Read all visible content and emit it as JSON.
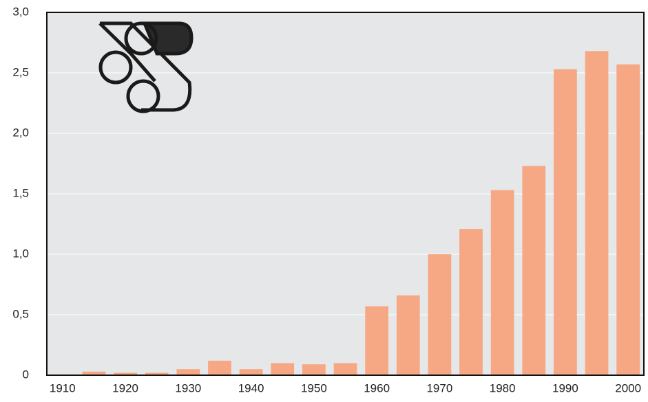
{
  "chart_data": {
    "type": "bar",
    "x": [
      1915,
      1920,
      1925,
      1930,
      1935,
      1940,
      1945,
      1950,
      1955,
      1960,
      1965,
      1970,
      1975,
      1980,
      1985,
      1990,
      1995,
      2000
    ],
    "values": [
      0.03,
      0.02,
      0.02,
      0.05,
      0.12,
      0.05,
      0.1,
      0.09,
      0.1,
      0.57,
      0.66,
      1.0,
      1.21,
      1.53,
      1.73,
      2.53,
      2.68,
      2.57
    ],
    "color": "#f6a885",
    "xlim": [
      1907.5,
      2002.5
    ],
    "xticks": [
      1910,
      1920,
      1930,
      1940,
      1950,
      1960,
      1970,
      1980,
      1990,
      2000
    ],
    "ylim": [
      0,
      3
    ],
    "yticks": [
      0,
      {
        "value": 0.5,
        "label": "0,5"
      },
      {
        "value": 1,
        "label": "1,0"
      },
      {
        "value": 1.5,
        "label": "1,5"
      },
      {
        "value": 2,
        "label": "2,0"
      },
      {
        "value": 2.5,
        "label": "2,5"
      },
      {
        "value": 3,
        "label": "3,0"
      }
    ],
    "grid": true
  }
}
